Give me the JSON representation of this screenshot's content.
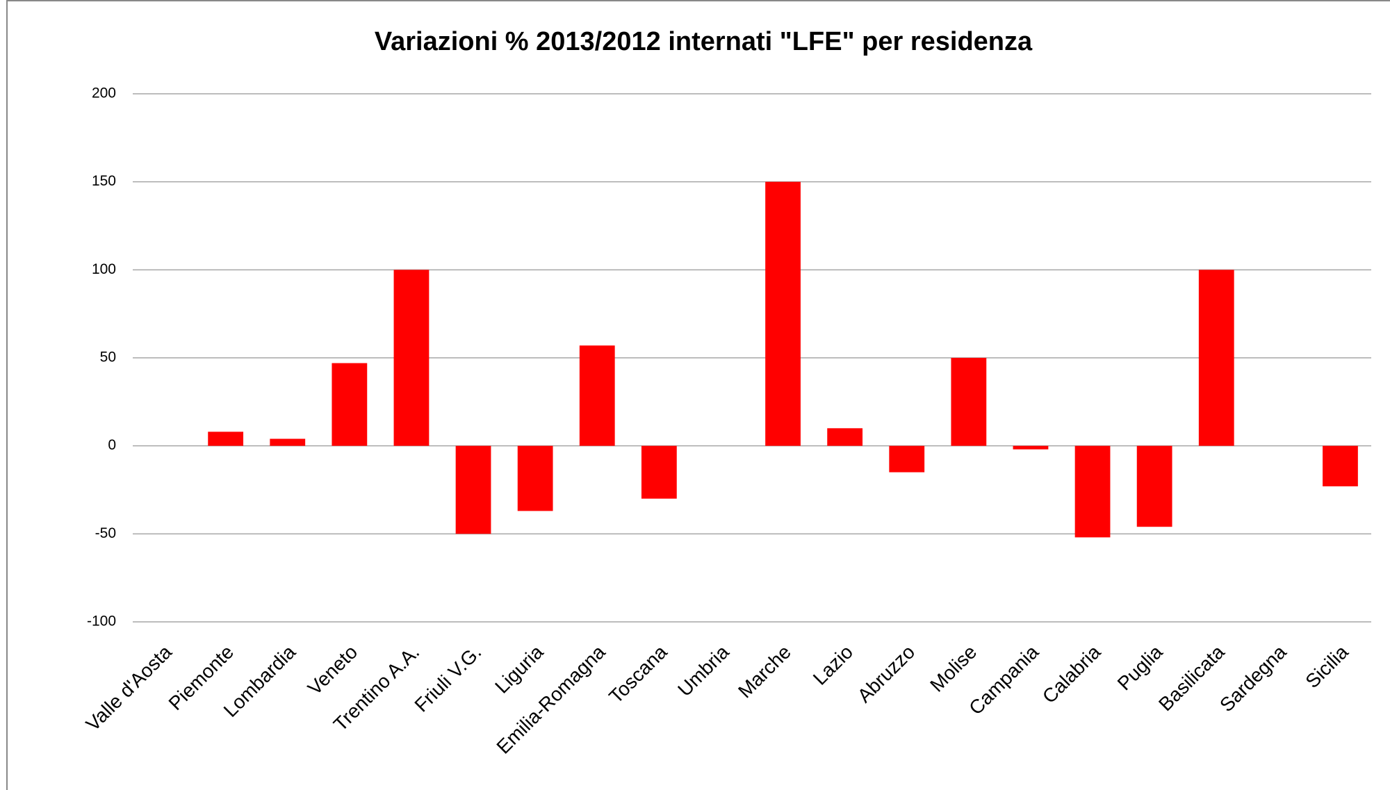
{
  "chart_data": {
    "type": "bar",
    "title": "Variazioni % 2013/2012 internati \"LFE\" per residenza",
    "categories": [
      "Valle d'Aosta",
      "Piemonte",
      "Lombardia",
      "Veneto",
      "Trentino A.A.",
      "Friuli V.G.",
      "Liguria",
      "Emilia-Romagna",
      "Toscana",
      "Umbria",
      "Marche",
      "Lazio",
      "Abruzzo",
      "Molise",
      "Campania",
      "Calabria",
      "Puglia",
      "Basilicata",
      "Sardegna",
      "Sicilia"
    ],
    "values": [
      0,
      8,
      4,
      47,
      100,
      -50,
      -37,
      57,
      -30,
      0,
      150,
      10,
      -15,
      50,
      -2,
      -52,
      -46,
      100,
      0,
      -23
    ],
    "color": "#ff0000",
    "ylim": [
      -100,
      200
    ],
    "yticks": [
      -100,
      -50,
      0,
      50,
      100,
      150,
      200
    ],
    "grid": true
  }
}
